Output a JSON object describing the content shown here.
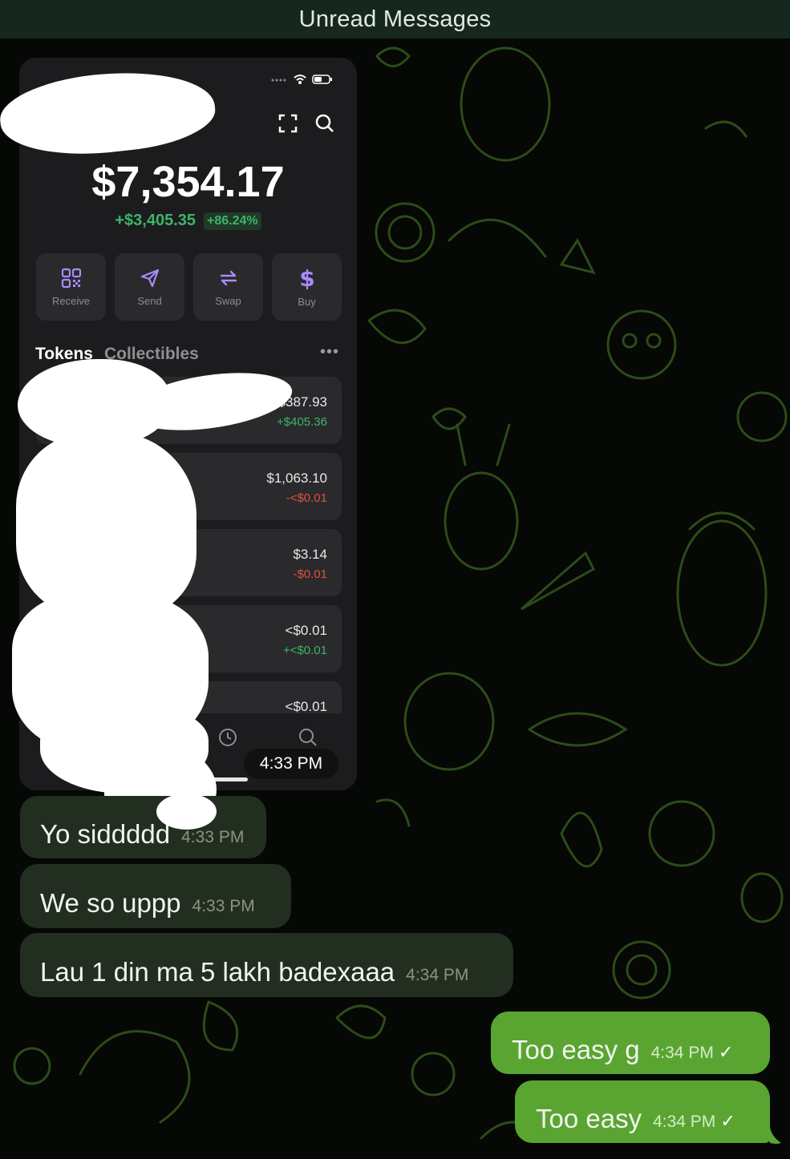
{
  "header": {
    "title": "Unread Messages"
  },
  "wallet_screenshot": {
    "balance": "$7,354.17",
    "change_amount": "+$3,405.35",
    "change_percent": "+86.24%",
    "actions": [
      {
        "label": "Receive",
        "icon": "qr-code-icon"
      },
      {
        "label": "Send",
        "icon": "send-arrow-icon"
      },
      {
        "label": "Swap",
        "icon": "swap-arrows-icon"
      },
      {
        "label": "Buy",
        "icon": "dollar-icon"
      }
    ],
    "tabs": {
      "active": "Tokens",
      "inactive": "Collectibles"
    },
    "tokens": [
      {
        "value": "$387.93",
        "change": "+$405.36",
        "trend": "up"
      },
      {
        "value": "$1,063.10",
        "change": "-<$0.01",
        "trend": "down"
      },
      {
        "value": "$3.14",
        "change": "-$0.01",
        "trend": "down"
      },
      {
        "value": "<$0.01",
        "change": "+<$0.01",
        "trend": "up"
      },
      {
        "value": "<$0.01",
        "change": "",
        "trend": "none"
      }
    ],
    "bubble_time": "4:33 PM"
  },
  "messages": [
    {
      "direction": "incoming",
      "text": "Yo siddddd",
      "time": "4:33 PM"
    },
    {
      "direction": "incoming",
      "text": "We so uppp",
      "time": "4:33 PM"
    },
    {
      "direction": "incoming",
      "text": "Lau 1 din ma 5 lakh badexaaa",
      "time": "4:34 PM"
    },
    {
      "direction": "outgoing",
      "text": "Too easy g",
      "time": "4:34 PM",
      "status": "sent"
    },
    {
      "direction": "outgoing",
      "text": "Too easy",
      "time": "4:34 PM",
      "status": "sent"
    }
  ],
  "colors": {
    "background": "#050805",
    "doodle": "#2b4a17",
    "incoming_bubble": "#222f20",
    "outgoing_bubble": "#5aa532",
    "header": "#16281d"
  }
}
